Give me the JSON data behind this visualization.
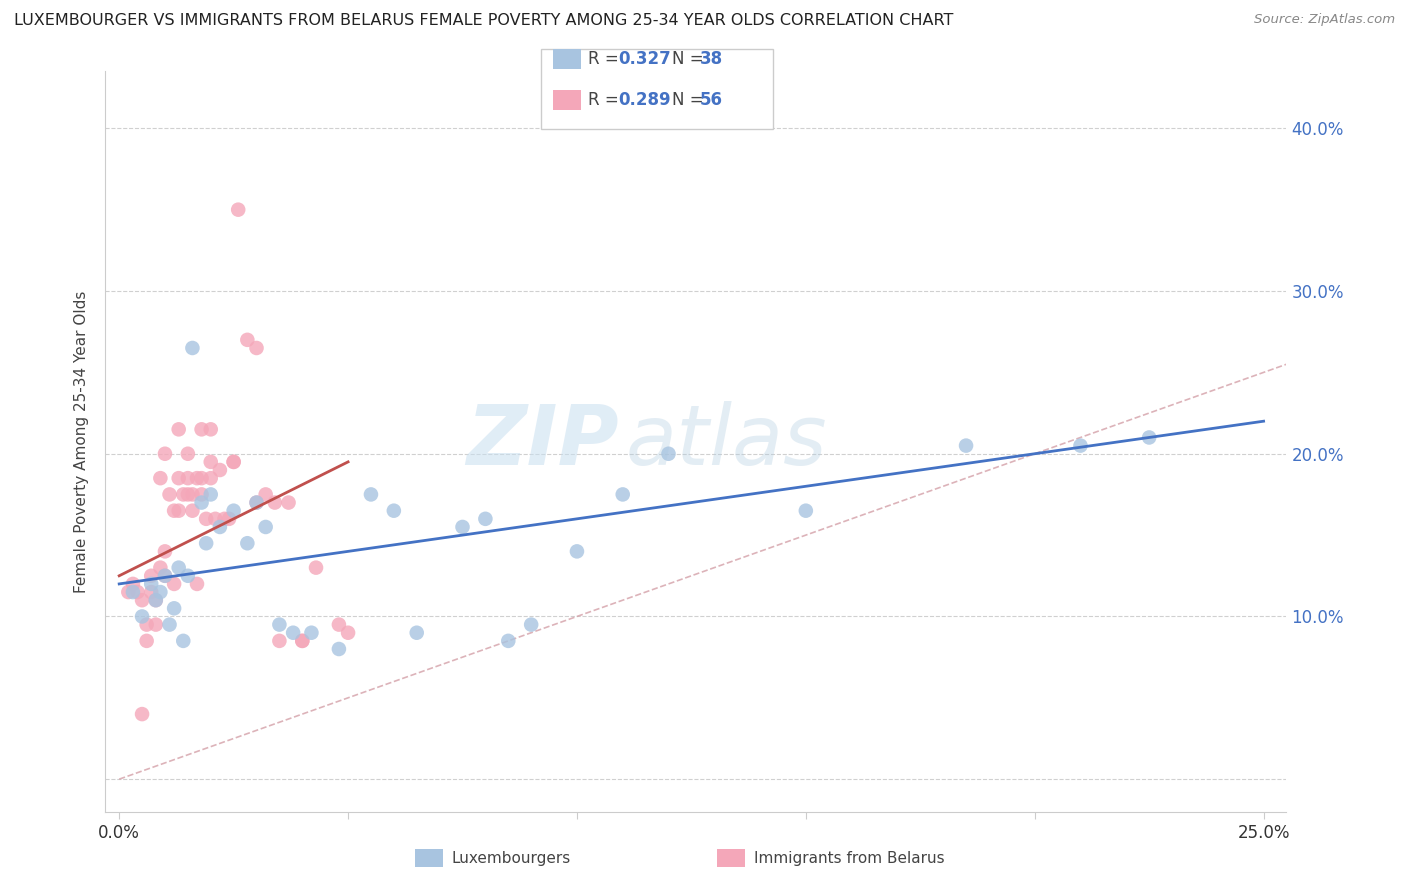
{
  "title": "LUXEMBOURGER VS IMMIGRANTS FROM BELARUS FEMALE POVERTY AMONG 25-34 YEAR OLDS CORRELATION CHART",
  "source": "Source: ZipAtlas.com",
  "ylabel": "Female Poverty Among 25-34 Year Olds",
  "xlim": [
    -0.003,
    0.255
  ],
  "ylim": [
    -0.02,
    0.435
  ],
  "lux_R": 0.327,
  "lux_N": 38,
  "bel_R": 0.289,
  "bel_N": 56,
  "lux_color": "#a8c4e0",
  "bel_color": "#f4a7b9",
  "lux_line_color": "#4472c4",
  "bel_line_color": "#c0504d",
  "diagonal_color": "#d4a0a8",
  "watermark_zip": "ZIP",
  "watermark_atlas": "atlas",
  "lux_points_x": [
    0.003,
    0.005,
    0.007,
    0.008,
    0.009,
    0.01,
    0.011,
    0.012,
    0.013,
    0.014,
    0.015,
    0.016,
    0.018,
    0.019,
    0.02,
    0.022,
    0.025,
    0.028,
    0.03,
    0.032,
    0.035,
    0.038,
    0.042,
    0.048,
    0.055,
    0.06,
    0.065,
    0.075,
    0.08,
    0.085,
    0.09,
    0.1,
    0.11,
    0.12,
    0.15,
    0.185,
    0.21,
    0.225
  ],
  "lux_points_y": [
    0.115,
    0.1,
    0.12,
    0.11,
    0.115,
    0.125,
    0.095,
    0.105,
    0.13,
    0.085,
    0.125,
    0.265,
    0.17,
    0.145,
    0.175,
    0.155,
    0.165,
    0.145,
    0.17,
    0.155,
    0.095,
    0.09,
    0.09,
    0.08,
    0.175,
    0.165,
    0.09,
    0.155,
    0.16,
    0.085,
    0.095,
    0.14,
    0.175,
    0.2,
    0.165,
    0.205,
    0.205,
    0.21
  ],
  "bel_points_x": [
    0.002,
    0.003,
    0.004,
    0.005,
    0.005,
    0.006,
    0.007,
    0.007,
    0.008,
    0.009,
    0.009,
    0.01,
    0.01,
    0.011,
    0.012,
    0.012,
    0.013,
    0.013,
    0.014,
    0.015,
    0.015,
    0.016,
    0.016,
    0.017,
    0.017,
    0.018,
    0.018,
    0.019,
    0.02,
    0.02,
    0.021,
    0.022,
    0.023,
    0.024,
    0.025,
    0.026,
    0.028,
    0.03,
    0.032,
    0.034,
    0.037,
    0.04,
    0.043,
    0.048,
    0.05,
    0.02,
    0.018,
    0.015,
    0.013,
    0.01,
    0.008,
    0.006,
    0.025,
    0.03,
    0.035,
    0.04
  ],
  "bel_points_y": [
    0.115,
    0.12,
    0.115,
    0.04,
    0.11,
    0.095,
    0.115,
    0.125,
    0.11,
    0.13,
    0.185,
    0.14,
    0.2,
    0.175,
    0.165,
    0.12,
    0.185,
    0.215,
    0.175,
    0.185,
    0.2,
    0.175,
    0.165,
    0.12,
    0.185,
    0.215,
    0.175,
    0.16,
    0.185,
    0.195,
    0.16,
    0.19,
    0.16,
    0.16,
    0.195,
    0.35,
    0.27,
    0.265,
    0.175,
    0.17,
    0.17,
    0.085,
    0.13,
    0.095,
    0.09,
    0.215,
    0.185,
    0.175,
    0.165,
    0.125,
    0.095,
    0.085,
    0.195,
    0.17,
    0.085,
    0.085
  ],
  "lux_line_x0": 0.0,
  "lux_line_y0": 0.12,
  "lux_line_x1": 0.25,
  "lux_line_y1": 0.22,
  "bel_line_x0": 0.0,
  "bel_line_y0": 0.125,
  "bel_line_x1": 0.05,
  "bel_line_y1": 0.195
}
